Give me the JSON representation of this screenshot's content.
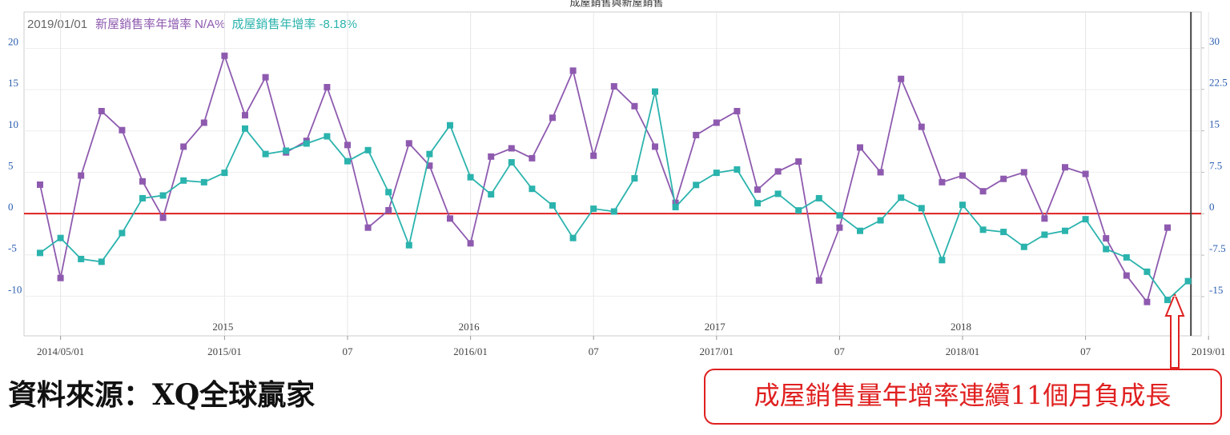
{
  "chart_data": {
    "type": "line",
    "title": "成屋銷售與新屋銷售",
    "readout": {
      "date": "2019/01/01",
      "values": [
        "N/A%",
        "-8.18%"
      ]
    },
    "categories": [
      null,
      "2014/05/01",
      null,
      null,
      null,
      null,
      null,
      null,
      null,
      "2015/01",
      null,
      null,
      null,
      null,
      null,
      "07",
      null,
      null,
      null,
      null,
      null,
      "2016/01",
      null,
      null,
      null,
      null,
      null,
      "07",
      null,
      null,
      null,
      null,
      null,
      "2017/01",
      null,
      null,
      null,
      null,
      null,
      "07",
      null,
      null,
      null,
      null,
      null,
      "2018/01",
      null,
      null,
      null,
      null,
      null,
      "07",
      null,
      null,
      null,
      null,
      null,
      "2019/01"
    ],
    "year_labels": [
      "2015",
      "2016",
      "2017",
      "2018"
    ],
    "series": [
      {
        "name": "新屋銷售率年增率",
        "color": "#8e5aaf",
        "axis": "y",
        "values": [
          3.5,
          -7.8,
          4.6,
          12.4,
          10.1,
          3.9,
          -0.5,
          8.1,
          11.0,
          19.1,
          11.9,
          16.5,
          7.4,
          8.8,
          15.3,
          8.3,
          -1.7,
          0.4,
          8.5,
          5.8,
          -0.6,
          -3.6,
          6.9,
          7.9,
          6.7,
          11.6,
          17.3,
          7.0,
          15.4,
          13.0,
          8.1,
          1.3,
          9.5,
          11.0,
          12.4,
          2.9,
          5.1,
          6.3,
          -8.1,
          -1.7,
          8.0,
          5.0,
          16.3,
          10.5,
          3.8,
          4.6,
          2.7,
          4.2,
          5.0,
          -0.6,
          5.6,
          4.8,
          -3.0,
          -7.5,
          -10.7,
          -1.7,
          null,
          null
        ]
      },
      {
        "name": "成屋銷售年增率",
        "color": "#2bb3ad",
        "axis": "y2",
        "values": [
          -7.1,
          -4.4,
          -8.2,
          -8.7,
          -3.5,
          2.8,
          3.3,
          6.0,
          5.7,
          7.4,
          15.4,
          10.8,
          11.4,
          12.7,
          14.0,
          9.5,
          11.5,
          3.9,
          -5.7,
          10.8,
          16.0,
          6.6,
          3.5,
          9.3,
          4.5,
          1.5,
          -4.4,
          0.9,
          0.4,
          6.4,
          22.1,
          1.2,
          5.2,
          7.4,
          8.0,
          1.9,
          3.6,
          0.6,
          2.8,
          -0.3,
          -3.1,
          -1.2,
          2.9,
          1.0,
          -8.4,
          1.6,
          -2.9,
          -3.3,
          -6.0,
          -3.8,
          -3.1,
          -1.0,
          -6.4,
          -7.9,
          -10.5,
          -15.6,
          -12.2,
          null
        ]
      }
    ],
    "ylim": [
      -14.8,
      24.4
    ],
    "yticks": [
      -10,
      -5,
      0,
      5,
      10,
      15,
      20
    ],
    "y2lim": [
      -22.1,
      36.5
    ],
    "y2ticks": [
      -15,
      -7.5,
      0,
      7.5,
      15,
      22.5,
      30
    ],
    "zero_line_color": "#e02020",
    "grid": true,
    "source": "資料來源：XQ全球贏家",
    "annotation": "成屋銷售量年增率連續11個月負成長"
  }
}
